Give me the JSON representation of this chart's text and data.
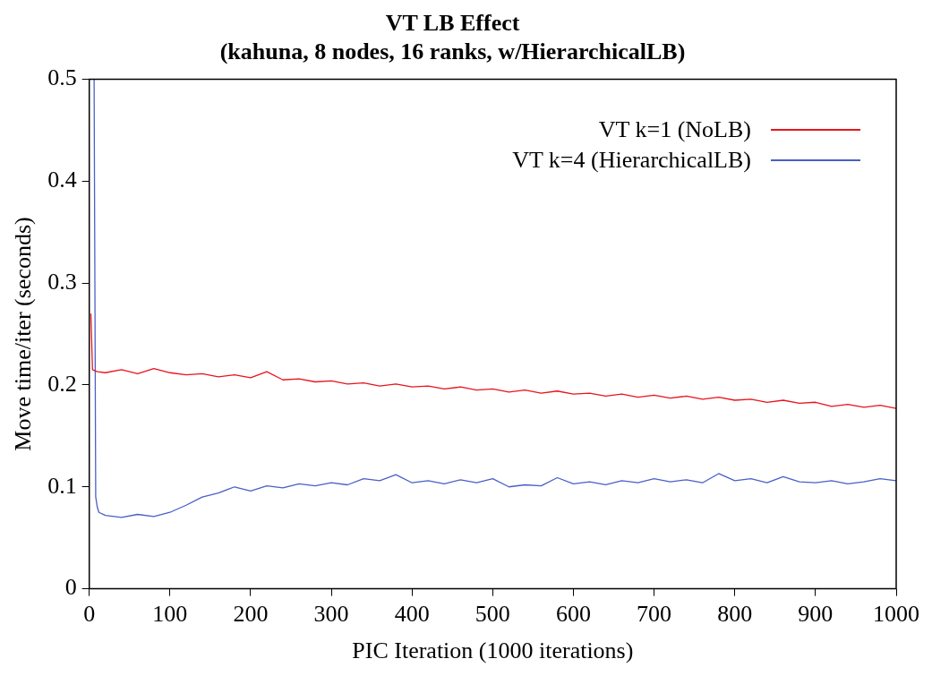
{
  "chart_data": {
    "type": "line",
    "title": "VT LB Effect\n(kahuna, 8 nodes, 16 ranks, w/HierarchicalLB)",
    "xlabel": "PIC Iteration (1000 iterations)",
    "ylabel": "Move time/iter (seconds)",
    "xlim": [
      0,
      1000
    ],
    "xticks": [
      0,
      100,
      200,
      300,
      400,
      500,
      600,
      700,
      800,
      900,
      1000
    ],
    "ylim": [
      0,
      0.5
    ],
    "yticks": [
      0,
      0.1,
      0.2,
      0.3,
      0.4,
      0.5
    ],
    "grid": false,
    "legend": "top right",
    "marker": "none",
    "line_style": "solid",
    "series": [
      {
        "name": "VT k=1 (NoLB)",
        "color": "#e8141c",
        "x": [
          2,
          4,
          10,
          20,
          40,
          60,
          80,
          100,
          120,
          140,
          160,
          180,
          200,
          220,
          240,
          260,
          280,
          300,
          320,
          340,
          360,
          380,
          400,
          420,
          440,
          460,
          480,
          500,
          520,
          540,
          560,
          580,
          600,
          620,
          640,
          660,
          680,
          700,
          720,
          740,
          760,
          780,
          800,
          820,
          840,
          860,
          880,
          900,
          920,
          940,
          960,
          980,
          1000
        ],
        "values": [
          0.27,
          0.215,
          0.213,
          0.212,
          0.215,
          0.211,
          0.216,
          0.212,
          0.21,
          0.211,
          0.208,
          0.21,
          0.207,
          0.213,
          0.205,
          0.206,
          0.203,
          0.204,
          0.201,
          0.202,
          0.199,
          0.201,
          0.198,
          0.199,
          0.196,
          0.198,
          0.195,
          0.196,
          0.193,
          0.195,
          0.192,
          0.194,
          0.191,
          0.192,
          0.189,
          0.191,
          0.188,
          0.19,
          0.187,
          0.189,
          0.186,
          0.188,
          0.185,
          0.186,
          0.183,
          0.185,
          0.182,
          0.183,
          0.179,
          0.181,
          0.178,
          0.18,
          0.177
        ]
      },
      {
        "name": "VT k=4 (HierarchicalLB)",
        "color": "#4a5fc8",
        "x": [
          6,
          8,
          10,
          12,
          20,
          40,
          60,
          80,
          100,
          120,
          140,
          160,
          180,
          200,
          220,
          240,
          260,
          280,
          300,
          320,
          340,
          360,
          380,
          400,
          420,
          440,
          460,
          480,
          500,
          520,
          540,
          560,
          580,
          600,
          620,
          640,
          660,
          680,
          700,
          720,
          740,
          760,
          780,
          800,
          820,
          840,
          860,
          880,
          900,
          920,
          940,
          960,
          980,
          1000
        ],
        "values": [
          0.5,
          0.09,
          0.08,
          0.075,
          0.072,
          0.07,
          0.073,
          0.071,
          0.075,
          0.082,
          0.09,
          0.094,
          0.1,
          0.096,
          0.101,
          0.099,
          0.103,
          0.101,
          0.104,
          0.102,
          0.108,
          0.106,
          0.112,
          0.104,
          0.106,
          0.103,
          0.107,
          0.104,
          0.108,
          0.1,
          0.102,
          0.101,
          0.109,
          0.103,
          0.105,
          0.102,
          0.106,
          0.104,
          0.108,
          0.105,
          0.107,
          0.104,
          0.113,
          0.106,
          0.108,
          0.104,
          0.11,
          0.105,
          0.104,
          0.106,
          0.103,
          0.105,
          0.108,
          0.106
        ]
      }
    ]
  }
}
